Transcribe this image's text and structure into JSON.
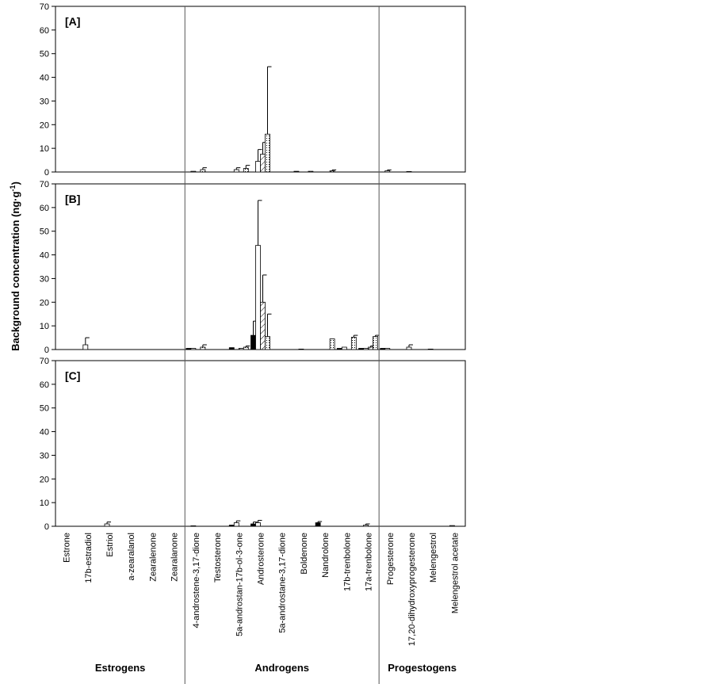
{
  "chart_data": {
    "type": "bar",
    "ylabel": {
      "text": "Background concentration (ng·g",
      "sup": "-1",
      "end": ")"
    },
    "ylim": [
      0,
      70
    ],
    "yticks": [
      0,
      10,
      20,
      30,
      40,
      50,
      60,
      70
    ],
    "groups": [
      {
        "label": "Estrogens",
        "categories": [
          "Estrone",
          "17b-estradiol",
          "Estriol",
          "a-zearalanol",
          "Zearalenone",
          "Zearalanone"
        ]
      },
      {
        "label": "Androgens",
        "categories": [
          "4-androstene-3,17-dione",
          "Testosterone",
          "5a-androstan-17b-ol-3-one",
          "Androsterone",
          "5a-androstane-3,17-dione",
          "Boldenone",
          "Nandrolone",
          "17b-trenbolone",
          "17a-trenbolone"
        ]
      },
      {
        "label": "Progestogens",
        "categories": [
          "Progesterone",
          "17,20-dihydroxyprogesterone",
          "Melengestrol",
          "Melengestrol acetate"
        ]
      }
    ],
    "panels": [
      {
        "label": "[A]",
        "series": [
          {
            "color": "#000000",
            "pattern": "solid",
            "values": [
              null,
              null,
              null,
              null,
              null,
              null,
              null,
              null,
              null,
              null,
              null,
              0.3,
              null,
              null,
              null,
              null,
              null,
              null,
              null
            ],
            "errors": [
              null,
              null,
              null,
              null,
              null,
              null,
              null,
              null,
              null,
              null,
              null,
              null,
              null,
              null,
              null,
              null,
              null,
              null,
              null
            ]
          },
          {
            "color": "#ffffff",
            "pattern": "solid",
            "values": [
              null,
              null,
              null,
              null,
              null,
              null,
              0.3,
              null,
              1,
              4.5,
              null,
              null,
              null,
              null,
              null,
              0.5,
              0.2,
              null,
              null
            ],
            "errors": [
              null,
              null,
              null,
              null,
              null,
              null,
              null,
              null,
              0.8,
              5,
              null,
              null,
              null,
              null,
              null,
              0.4,
              null,
              null,
              null
            ]
          },
          {
            "color": "#ffffff",
            "pattern": "hatch",
            "values": [
              null,
              null,
              null,
              null,
              null,
              null,
              null,
              null,
              null,
              7.5,
              null,
              null,
              null,
              null,
              null,
              null,
              null,
              null,
              null
            ],
            "errors": [
              null,
              null,
              null,
              null,
              null,
              null,
              null,
              null,
              null,
              5,
              null,
              null,
              null,
              null,
              null,
              null,
              null,
              null,
              null
            ]
          },
          {
            "color": "#ffffff",
            "pattern": "dots",
            "values": [
              null,
              null,
              null,
              null,
              null,
              null,
              1,
              null,
              1.5,
              16,
              null,
              0.3,
              0.5,
              null,
              null,
              null,
              null,
              null,
              null
            ],
            "errors": [
              null,
              null,
              null,
              null,
              null,
              null,
              0.8,
              null,
              1.3,
              28.5,
              null,
              null,
              0.4,
              null,
              null,
              null,
              null,
              null,
              null
            ]
          }
        ]
      },
      {
        "label": "[B]",
        "series": [
          {
            "color": "#000000",
            "pattern": "solid",
            "values": [
              null,
              null,
              null,
              null,
              null,
              null,
              0.5,
              null,
              0.8,
              6,
              null,
              null,
              null,
              0.5,
              0.5,
              0.5,
              null,
              null,
              null
            ],
            "errors": [
              null,
              null,
              null,
              null,
              null,
              null,
              null,
              null,
              null,
              6,
              null,
              null,
              null,
              null,
              null,
              null,
              null,
              null,
              null
            ]
          },
          {
            "color": "#ffffff",
            "pattern": "solid",
            "values": [
              null,
              2,
              null,
              null,
              null,
              null,
              0.5,
              null,
              null,
              44,
              null,
              0.2,
              null,
              1,
              0.5,
              0.5,
              1,
              0.2,
              null
            ],
            "errors": [
              null,
              3,
              null,
              null,
              null,
              null,
              null,
              null,
              null,
              19,
              null,
              null,
              null,
              null,
              null,
              null,
              1,
              null,
              null
            ]
          },
          {
            "color": "#ffffff",
            "pattern": "hatch",
            "values": [
              null,
              null,
              null,
              null,
              null,
              null,
              null,
              null,
              0.5,
              20,
              null,
              null,
              null,
              null,
              1,
              null,
              null,
              null,
              null
            ],
            "errors": [
              null,
              null,
              null,
              null,
              null,
              null,
              null,
              null,
              null,
              11.5,
              null,
              null,
              null,
              null,
              0.5,
              null,
              null,
              null,
              null
            ]
          },
          {
            "color": "#ffffff",
            "pattern": "dots",
            "values": [
              null,
              null,
              null,
              null,
              null,
              null,
              1,
              null,
              1,
              5.5,
              null,
              null,
              4.5,
              5.2,
              5.5,
              null,
              null,
              null,
              null
            ],
            "errors": [
              null,
              null,
              null,
              null,
              null,
              null,
              1,
              null,
              0.5,
              9.5,
              null,
              null,
              null,
              0.8,
              0.5,
              null,
              null,
              null,
              null
            ]
          }
        ]
      },
      {
        "label": "[C]",
        "series": [
          {
            "color": "#000000",
            "pattern": "solid",
            "values": [
              null,
              null,
              null,
              null,
              null,
              null,
              null,
              null,
              0.5,
              1,
              null,
              null,
              1.5,
              null,
              null,
              null,
              null,
              null,
              null
            ],
            "errors": [
              null,
              null,
              null,
              null,
              null,
              null,
              null,
              null,
              null,
              0.8,
              null,
              null,
              0.5,
              null,
              null,
              null,
              null,
              null,
              null
            ]
          },
          {
            "color": "#ffffff",
            "pattern": "solid",
            "values": [
              null,
              null,
              1,
              null,
              null,
              null,
              0.2,
              null,
              1.5,
              1.5,
              null,
              null,
              null,
              null,
              0.5,
              null,
              null,
              null,
              0.3
            ],
            "errors": [
              null,
              null,
              0.8,
              null,
              null,
              null,
              null,
              null,
              0.8,
              1,
              null,
              null,
              null,
              null,
              0.5,
              null,
              null,
              null,
              null
            ]
          },
          {
            "color": "#ffffff",
            "pattern": "hatch",
            "values": [
              null,
              null,
              null,
              null,
              null,
              null,
              null,
              null,
              null,
              null,
              null,
              null,
              null,
              null,
              null,
              null,
              null,
              null,
              null
            ],
            "errors": [
              null,
              null,
              null,
              null,
              null,
              null,
              null,
              null,
              null,
              null,
              null,
              null,
              null,
              null,
              null,
              null,
              null,
              null,
              null
            ]
          },
          {
            "color": "#ffffff",
            "pattern": "dots",
            "values": [
              null,
              null,
              null,
              null,
              null,
              null,
              null,
              null,
              null,
              null,
              null,
              null,
              null,
              null,
              null,
              null,
              null,
              null,
              null
            ],
            "errors": [
              null,
              null,
              null,
              null,
              null,
              null,
              null,
              null,
              null,
              null,
              null,
              null,
              null,
              null,
              null,
              null,
              null,
              null,
              null
            ]
          }
        ]
      }
    ]
  }
}
